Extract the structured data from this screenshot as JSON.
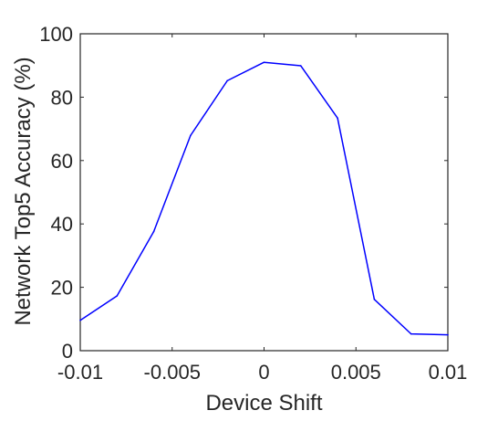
{
  "chart_data": {
    "type": "line",
    "title": "",
    "xlabel": "Device Shift",
    "ylabel": "Network Top5 Accuracy (%)",
    "xlim": [
      -0.01,
      0.01
    ],
    "ylim": [
      0,
      100
    ],
    "grid": false,
    "x_ticks": [
      -0.01,
      -0.005,
      0,
      0.005,
      0.01
    ],
    "x_tick_labels": [
      "-0.01",
      "-0.005",
      "0",
      "0.005",
      "0.01"
    ],
    "y_ticks": [
      0,
      20,
      40,
      60,
      80,
      100
    ],
    "y_tick_labels": [
      "0",
      "20",
      "40",
      "60",
      "80",
      "100"
    ],
    "series": [
      {
        "color": "#0000ff",
        "x": [
          -0.01,
          -0.008,
          -0.006,
          -0.004,
          -0.002,
          0,
          0.002,
          0.004,
          0.006,
          0.008,
          0.01
        ],
        "y": [
          9.6,
          17.3,
          37.6,
          67.9,
          85.2,
          91.0,
          89.9,
          73.4,
          16.2,
          5.3,
          5.0
        ]
      }
    ]
  }
}
